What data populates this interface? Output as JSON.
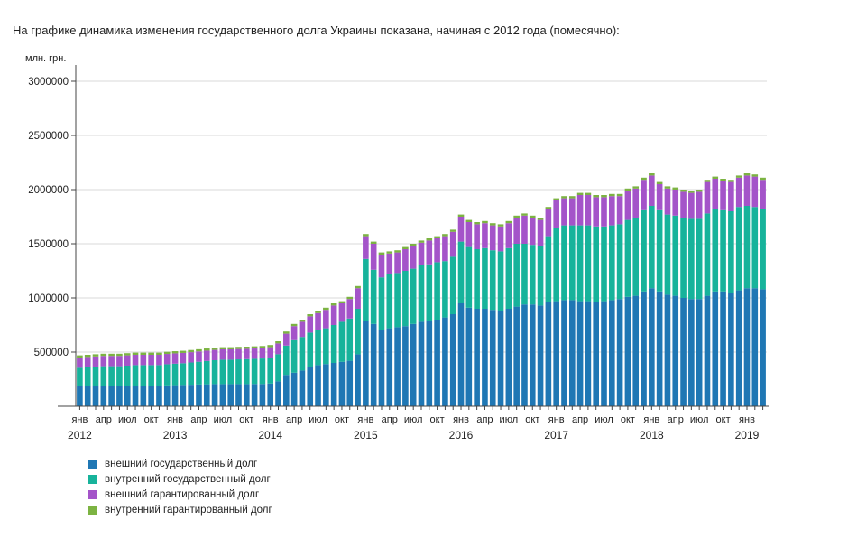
{
  "page": {
    "title": "На графике динамика изменения государственного долга Украины показана, начиная с 2012 года (помесячно):"
  },
  "chart_data": {
    "type": "bar",
    "stacked": true,
    "ylabel": "млн. грн.",
    "ylim": [
      0,
      3000000
    ],
    "y_ticks": [
      500000,
      1000000,
      1500000,
      2000000,
      2500000,
      3000000
    ],
    "grid": "horizontal",
    "x_tick_labels": [
      "янв",
      "апр",
      "июл",
      "окт",
      "янв",
      "апр",
      "июл",
      "окт",
      "янв",
      "апр",
      "июл",
      "окт",
      "янв",
      "апр",
      "июл",
      "окт",
      "янв",
      "апр",
      "июл",
      "окт",
      "янв",
      "апр",
      "июл",
      "окт",
      "янв",
      "апр",
      "июл",
      "окт",
      "янв"
    ],
    "x_tick_months": [
      1,
      4,
      7,
      10,
      13,
      16,
      19,
      22,
      25,
      28,
      31,
      34,
      37,
      40,
      43,
      46,
      49,
      52,
      55,
      58,
      61,
      64,
      67,
      70,
      73,
      76,
      79,
      82,
      85
    ],
    "year_labels": [
      "2012",
      "2013",
      "2014",
      "2015",
      "2016",
      "2017",
      "2018",
      "2019"
    ],
    "year_label_months": [
      1,
      13,
      25,
      37,
      49,
      61,
      73,
      85
    ],
    "categories": [
      "2012-01",
      "2012-02",
      "2012-03",
      "2012-04",
      "2012-05",
      "2012-06",
      "2012-07",
      "2012-08",
      "2012-09",
      "2012-10",
      "2012-11",
      "2012-12",
      "2013-01",
      "2013-02",
      "2013-03",
      "2013-04",
      "2013-05",
      "2013-06",
      "2013-07",
      "2013-08",
      "2013-09",
      "2013-10",
      "2013-11",
      "2013-12",
      "2014-01",
      "2014-02",
      "2014-03",
      "2014-04",
      "2014-05",
      "2014-06",
      "2014-07",
      "2014-08",
      "2014-09",
      "2014-10",
      "2014-11",
      "2014-12",
      "2015-01",
      "2015-02",
      "2015-03",
      "2015-04",
      "2015-05",
      "2015-06",
      "2015-07",
      "2015-08",
      "2015-09",
      "2015-10",
      "2015-11",
      "2015-12",
      "2016-01",
      "2016-02",
      "2016-03",
      "2016-04",
      "2016-05",
      "2016-06",
      "2016-07",
      "2016-08",
      "2016-09",
      "2016-10",
      "2016-11",
      "2016-12",
      "2017-01",
      "2017-02",
      "2017-03",
      "2017-04",
      "2017-05",
      "2017-06",
      "2017-07",
      "2017-08",
      "2017-09",
      "2017-10",
      "2017-11",
      "2017-12",
      "2018-01",
      "2018-02",
      "2018-03",
      "2018-04",
      "2018-05",
      "2018-06",
      "2018-07",
      "2018-08",
      "2018-09",
      "2018-10",
      "2018-11",
      "2018-12",
      "2019-01",
      "2019-02",
      "2019-03"
    ],
    "series": [
      {
        "name": "внешний государственный долг",
        "color": "#1f77b4",
        "values": [
          185000,
          185000,
          185000,
          185000,
          185000,
          185000,
          190000,
          190000,
          190000,
          190000,
          190000,
          193000,
          195000,
          197000,
          199000,
          201000,
          203000,
          205000,
          205000,
          205000,
          205000,
          205000,
          206000,
          206000,
          210000,
          230000,
          290000,
          310000,
          330000,
          360000,
          380000,
          390000,
          400000,
          410000,
          420000,
          480000,
          790000,
          760000,
          700000,
          720000,
          730000,
          740000,
          760000,
          780000,
          790000,
          800000,
          820000,
          850000,
          950000,
          910000,
          900000,
          900000,
          890000,
          880000,
          900000,
          920000,
          940000,
          940000,
          930000,
          960000,
          970000,
          980000,
          980000,
          970000,
          970000,
          960000,
          970000,
          980000,
          990000,
          1010000,
          1020000,
          1060000,
          1090000,
          1060000,
          1030000,
          1020000,
          1000000,
          990000,
          990000,
          1020000,
          1060000,
          1060000,
          1050000,
          1070000,
          1090000,
          1090000,
          1080000
        ]
      },
      {
        "name": "внутренний государственный долг",
        "color": "#17b39b",
        "values": [
          170000,
          175000,
          180000,
          185000,
          185000,
          185000,
          185000,
          190000,
          190000,
          190000,
          190000,
          195000,
          198000,
          200000,
          205000,
          210000,
          215000,
          220000,
          225000,
          225000,
          228000,
          230000,
          232000,
          235000,
          240000,
          250000,
          270000,
          300000,
          310000,
          320000,
          320000,
          330000,
          350000,
          370000,
          390000,
          420000,
          570000,
          500000,
          490000,
          500000,
          500000,
          510000,
          510000,
          520000,
          520000,
          530000,
          520000,
          530000,
          570000,
          560000,
          550000,
          560000,
          550000,
          550000,
          560000,
          580000,
          560000,
          550000,
          550000,
          610000,
          680000,
          690000,
          690000,
          700000,
          700000,
          700000,
          690000,
          690000,
          690000,
          710000,
          720000,
          750000,
          760000,
          750000,
          740000,
          740000,
          740000,
          740000,
          740000,
          760000,
          760000,
          750000,
          750000,
          770000,
          760000,
          750000,
          740000
        ]
      },
      {
        "name": "внешний гарантированный долг",
        "color": "#a454c9",
        "values": [
          95000,
          95000,
          95000,
          95000,
          95000,
          95000,
          95000,
          95000,
          95000,
          95000,
          95000,
          95000,
          95000,
          95000,
          95000,
          95000,
          95000,
          95000,
          95000,
          95000,
          95000,
          95000,
          95000,
          95000,
          95000,
          100000,
          110000,
          130000,
          140000,
          150000,
          160000,
          170000,
          180000,
          170000,
          180000,
          190000,
          210000,
          240000,
          210000,
          190000,
          190000,
          200000,
          210000,
          210000,
          220000,
          220000,
          230000,
          230000,
          230000,
          230000,
          230000,
          230000,
          230000,
          230000,
          230000,
          240000,
          260000,
          250000,
          240000,
          250000,
          250000,
          250000,
          250000,
          280000,
          280000,
          270000,
          270000,
          270000,
          260000,
          270000,
          270000,
          280000,
          280000,
          240000,
          240000,
          240000,
          240000,
          240000,
          250000,
          290000,
          280000,
          270000,
          270000,
          270000,
          280000,
          280000,
          270000
        ]
      },
      {
        "name": "внутренний гарантированный долг",
        "color": "#7cb342",
        "values": [
          20000,
          20000,
          20000,
          20000,
          20000,
          20000,
          20000,
          20000,
          20000,
          20000,
          20000,
          20000,
          20000,
          20000,
          20000,
          20000,
          20000,
          20000,
          20000,
          20000,
          20000,
          20000,
          20000,
          20000,
          20000,
          20000,
          20000,
          20000,
          20000,
          20000,
          20000,
          20000,
          20000,
          20000,
          20000,
          20000,
          20000,
          20000,
          20000,
          20000,
          20000,
          20000,
          20000,
          20000,
          20000,
          20000,
          20000,
          20000,
          20000,
          20000,
          20000,
          20000,
          20000,
          20000,
          20000,
          20000,
          20000,
          20000,
          20000,
          20000,
          20000,
          20000,
          20000,
          20000,
          20000,
          20000,
          20000,
          20000,
          20000,
          20000,
          20000,
          20000,
          20000,
          20000,
          20000,
          20000,
          20000,
          20000,
          20000,
          20000,
          20000,
          20000,
          20000,
          20000,
          20000,
          20000,
          20000
        ]
      }
    ],
    "legend_position": "bottom-left"
  }
}
